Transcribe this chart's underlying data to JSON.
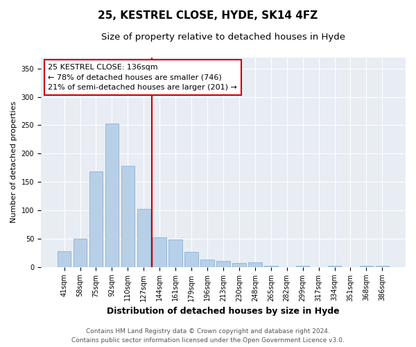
{
  "title": "25, KESTREL CLOSE, HYDE, SK14 4FZ",
  "subtitle": "Size of property relative to detached houses in Hyde",
  "xlabel": "Distribution of detached houses by size in Hyde",
  "ylabel": "Number of detached properties",
  "categories": [
    "41sqm",
    "58sqm",
    "75sqm",
    "92sqm",
    "110sqm",
    "127sqm",
    "144sqm",
    "161sqm",
    "179sqm",
    "196sqm",
    "213sqm",
    "230sqm",
    "248sqm",
    "265sqm",
    "282sqm",
    "299sqm",
    "317sqm",
    "334sqm",
    "351sqm",
    "368sqm",
    "386sqm"
  ],
  "values": [
    28,
    50,
    168,
    253,
    178,
    102,
    52,
    48,
    27,
    13,
    10,
    7,
    8,
    2,
    0,
    2,
    0,
    2,
    0,
    2,
    2
  ],
  "bar_color": "#b8cfe8",
  "bar_edge_color": "#7aaad0",
  "vline_x": 5.5,
  "vline_color": "#cc0000",
  "annotation_line1": "25 KESTREL CLOSE: 136sqm",
  "annotation_line2": "← 78% of detached houses are smaller (746)",
  "annotation_line3": "21% of semi-detached houses are larger (201) →",
  "annotation_box_color": "#cc0000",
  "annotation_bg_color": "#ffffff",
  "ylim": [
    0,
    370
  ],
  "yticks": [
    0,
    50,
    100,
    150,
    200,
    250,
    300,
    350
  ],
  "fig_bg_color": "#ffffff",
  "plot_bg_color": "#e8edf4",
  "footer_line1": "Contains HM Land Registry data © Crown copyright and database right 2024.",
  "footer_line2": "Contains public sector information licensed under the Open Government Licence v3.0.",
  "title_fontsize": 11,
  "subtitle_fontsize": 9.5,
  "xlabel_fontsize": 9,
  "ylabel_fontsize": 8,
  "tick_fontsize": 7,
  "annotation_fontsize": 8,
  "footer_fontsize": 6.5
}
